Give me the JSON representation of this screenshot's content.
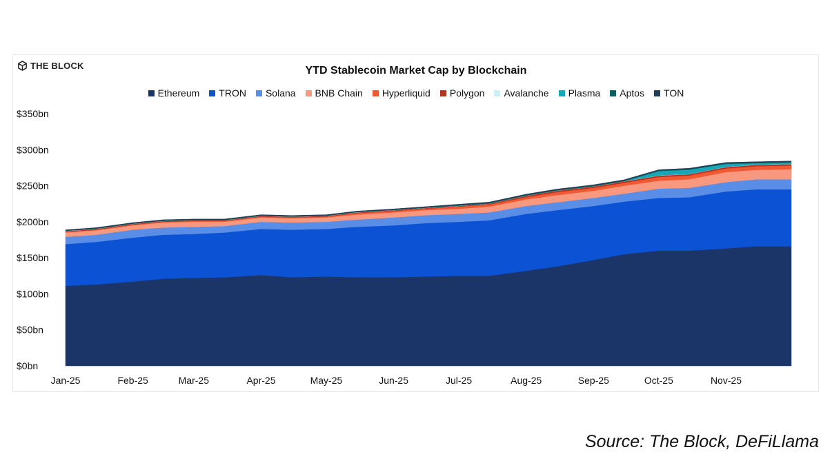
{
  "brand": {
    "name": "THE BLOCK",
    "icon": "the-block-cube-icon"
  },
  "source": "Source: The Block, DeFiLlama",
  "chart_data": {
    "type": "area",
    "stacked": true,
    "title": "YTD Stablecoin Market Cap by Blockchain",
    "xlabel": "",
    "ylabel": "",
    "ylim": [
      0,
      350
    ],
    "y_ticks": [
      {
        "value": 0,
        "label": "$0bn"
      },
      {
        "value": 50,
        "label": "$50bn"
      },
      {
        "value": 100,
        "label": "$100bn"
      },
      {
        "value": 150,
        "label": "$150bn"
      },
      {
        "value": 200,
        "label": "$200bn"
      },
      {
        "value": 250,
        "label": "$250bn"
      },
      {
        "value": 300,
        "label": "$300bn"
      },
      {
        "value": 350,
        "label": "$350bn"
      }
    ],
    "x_ticks": [
      "Jan-25",
      "Feb-25",
      "Mar-25",
      "Apr-25",
      "May-25",
      "Jun-25",
      "Jul-25",
      "Aug-25",
      "Sep-25",
      "Oct-25",
      "Nov-25"
    ],
    "grid": false,
    "legend_position": "top",
    "x": [
      "2025-01-01",
      "2025-01-15",
      "2025-02-01",
      "2025-02-15",
      "2025-03-01",
      "2025-03-15",
      "2025-04-01",
      "2025-04-15",
      "2025-05-01",
      "2025-05-15",
      "2025-06-01",
      "2025-06-15",
      "2025-07-01",
      "2025-07-15",
      "2025-08-01",
      "2025-08-15",
      "2025-09-01",
      "2025-09-15",
      "2025-10-01",
      "2025-10-15",
      "2025-11-01",
      "2025-11-15",
      "2025-12-01"
    ],
    "series": [
      {
        "name": "Ethereum",
        "color": "#1b3569",
        "values": [
          111,
          113,
          117,
          121,
          122,
          123,
          126,
          123,
          124,
          123,
          123,
          124,
          125,
          125,
          132,
          138,
          147,
          155,
          160,
          160,
          163,
          166,
          166
        ]
      },
      {
        "name": "TRON",
        "color": "#0c52d4",
        "values": [
          58,
          59,
          61,
          61,
          61,
          62,
          64,
          66,
          66,
          70,
          72,
          74,
          75,
          77,
          79,
          78,
          75,
          73,
          73,
          74,
          79,
          79,
          79
        ]
      },
      {
        "name": "Solana",
        "color": "#5a8de6",
        "values": [
          10,
          10,
          11,
          10,
          10,
          9,
          10,
          10,
          10,
          10,
          11,
          11,
          11,
          11,
          11,
          11,
          11,
          11,
          13,
          13,
          13,
          14,
          14
        ]
      },
      {
        "name": "BNB Chain",
        "color": "#f8987e",
        "values": [
          6,
          6,
          6,
          7,
          7,
          6,
          6,
          6,
          6,
          7,
          7,
          7,
          7,
          8,
          9,
          10,
          10,
          11,
          11,
          12,
          14,
          13,
          14
        ]
      },
      {
        "name": "Hyperliquid",
        "color": "#ef5a34",
        "values": [
          1,
          1,
          1,
          1,
          1,
          1,
          1,
          1,
          1,
          2,
          2,
          2,
          3,
          3,
          3,
          4,
          4,
          4,
          5,
          5,
          5,
          5,
          5
        ]
      },
      {
        "name": "Polygon",
        "color": "#b8331f",
        "values": [
          1,
          1,
          1,
          1,
          1,
          1,
          1,
          1,
          1,
          1,
          1,
          1,
          1,
          1,
          2,
          2,
          2,
          2,
          2,
          2,
          2,
          2,
          2
        ]
      },
      {
        "name": "Avalanche",
        "color": "#cdeef5",
        "values": [
          0.3,
          0.3,
          0.3,
          0.3,
          0.3,
          0.3,
          0.3,
          0.3,
          0.3,
          0.3,
          0.3,
          0.3,
          0.3,
          0.3,
          0.3,
          0.3,
          0.3,
          0.3,
          0.3,
          0.3,
          0.3,
          0.3,
          0.3
        ]
      },
      {
        "name": "Plasma",
        "color": "#16a8b8",
        "values": [
          0,
          0,
          0,
          0,
          0,
          0,
          0,
          0,
          0,
          0,
          0,
          0,
          0,
          0,
          0,
          0,
          0,
          0,
          6,
          6,
          4,
          2,
          2
        ]
      },
      {
        "name": "Aptos",
        "color": "#0b5e5f",
        "values": [
          0.5,
          0.5,
          0.5,
          0.5,
          0.5,
          0.5,
          0.5,
          0.5,
          0.5,
          0.5,
          0.5,
          0.5,
          1,
          1,
          1,
          1,
          1,
          1,
          1,
          1,
          1,
          1,
          1
        ]
      },
      {
        "name": "TON",
        "color": "#263d55",
        "values": [
          1,
          1,
          1,
          1,
          1,
          1,
          1,
          1,
          1,
          1,
          1,
          1,
          1,
          1,
          1,
          1,
          1,
          1,
          1,
          1,
          1,
          1,
          1
        ]
      }
    ]
  }
}
